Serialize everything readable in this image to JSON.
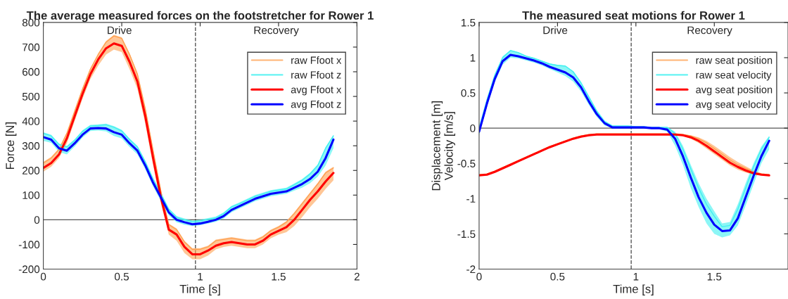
{
  "chart_data": [
    {
      "type": "line",
      "title": "The average measured forces on the footstretcher for Rower 1",
      "xlabel": "Time [s]",
      "ylabel": "Force [N]",
      "x": [
        0,
        0.05,
        0.1,
        0.15,
        0.2,
        0.25,
        0.3,
        0.35,
        0.4,
        0.45,
        0.5,
        0.55,
        0.6,
        0.65,
        0.7,
        0.75,
        0.8,
        0.85,
        0.9,
        0.95,
        1.0,
        1.05,
        1.1,
        1.15,
        1.2,
        1.25,
        1.3,
        1.35,
        1.4,
        1.45,
        1.5,
        1.55,
        1.6,
        1.65,
        1.7,
        1.75,
        1.8,
        1.85
      ],
      "xlim": [
        0,
        2
      ],
      "xticks": [
        0,
        0.5,
        1,
        1.5,
        2
      ],
      "ylim": [
        -200,
        800
      ],
      "yticks": [
        -200,
        -100,
        0,
        100,
        200,
        300,
        400,
        500,
        600,
        700,
        800
      ],
      "grid": false,
      "legend": "top right",
      "ref_lines": [
        {
          "axis": "x",
          "value": 0.97,
          "color": "#555555",
          "line_style": "dashed"
        },
        {
          "axis": "y",
          "value": 0,
          "color": "#555555",
          "line_style": "solid"
        }
      ],
      "annotations": [
        "Drive",
        "Recovery"
      ],
      "series": [
        {
          "name": "raw Ffoot x",
          "color": "#ffa050",
          "values": [
            230,
            250,
            285,
            350,
            440,
            530,
            610,
            670,
            720,
            745,
            735,
            670,
            590,
            450,
            280,
            115,
            -20,
            -40,
            -90,
            -120,
            -120,
            -110,
            -85,
            -80,
            -75,
            -80,
            -85,
            -85,
            -70,
            -45,
            -30,
            -10,
            25,
            65,
            105,
            145,
            190,
            210
          ],
          "upper": [
            235,
            255,
            290,
            355,
            445,
            535,
            615,
            675,
            725,
            750,
            740,
            675,
            595,
            455,
            285,
            120,
            -15,
            -35,
            -85,
            -115,
            -115,
            -105,
            -80,
            -75,
            -70,
            -75,
            -80,
            -80,
            -65,
            -40,
            -25,
            -5,
            30,
            70,
            110,
            150,
            195,
            215
          ],
          "lower": [
            195,
            215,
            250,
            310,
            400,
            490,
            570,
            625,
            670,
            690,
            680,
            610,
            530,
            390,
            220,
            65,
            -60,
            -85,
            -135,
            -160,
            -160,
            -145,
            -120,
            -110,
            -105,
            -110,
            -115,
            -115,
            -100,
            -75,
            -60,
            -50,
            -25,
            10,
            50,
            85,
            125,
            160
          ]
        },
        {
          "name": "raw Ffoot z",
          "color": "#40f0f0",
          "values": [
            350,
            340,
            305,
            295,
            322,
            358,
            380,
            382,
            385,
            375,
            360,
            325,
            295,
            235,
            165,
            105,
            42,
            10,
            0,
            -8,
            -5,
            2,
            8,
            25,
            52,
            65,
            80,
            95,
            105,
            115,
            120,
            125,
            142,
            160,
            185,
            220,
            290,
            340
          ],
          "upper": [
            355,
            345,
            310,
            300,
            327,
            363,
            385,
            387,
            390,
            380,
            365,
            330,
            300,
            240,
            170,
            110,
            47,
            15,
            5,
            -3,
            0,
            7,
            13,
            30,
            57,
            70,
            85,
            100,
            110,
            120,
            125,
            130,
            147,
            165,
            190,
            225,
            295,
            345
          ],
          "lower": [
            320,
            312,
            275,
            265,
            297,
            333,
            360,
            362,
            358,
            340,
            330,
            295,
            265,
            205,
            135,
            75,
            18,
            -10,
            -20,
            -25,
            -22,
            -15,
            -8,
            5,
            30,
            45,
            60,
            75,
            85,
            95,
            100,
            105,
            118,
            130,
            148,
            175,
            220,
            290
          ]
        },
        {
          "name": "avg Ffoot x",
          "color": "#ff0000",
          "values": [
            210,
            230,
            265,
            330,
            420,
            510,
            590,
            650,
            695,
            715,
            705,
            640,
            560,
            420,
            250,
            90,
            -40,
            -60,
            -110,
            -140,
            -140,
            -125,
            -105,
            -95,
            -90,
            -95,
            -100,
            -100,
            -85,
            -60,
            -45,
            -30,
            0,
            40,
            80,
            115,
            155,
            190
          ]
        },
        {
          "name": "avg Ffoot z",
          "color": "#0000ff",
          "values": [
            335,
            325,
            290,
            280,
            310,
            345,
            370,
            372,
            370,
            355,
            345,
            310,
            280,
            220,
            150,
            90,
            30,
            0,
            -10,
            -18,
            -15,
            -8,
            0,
            15,
            40,
            55,
            70,
            85,
            95,
            105,
            110,
            115,
            130,
            145,
            165,
            195,
            250,
            325
          ]
        }
      ]
    },
    {
      "type": "line",
      "title": "The measured seat motions for Rower 1",
      "xlabel": "Time [s]",
      "ylabel": "Displacement [m]\nVelocity [m/s]",
      "x": [
        0,
        0.05,
        0.1,
        0.15,
        0.2,
        0.25,
        0.3,
        0.35,
        0.4,
        0.45,
        0.5,
        0.55,
        0.6,
        0.65,
        0.7,
        0.75,
        0.8,
        0.85,
        0.9,
        0.95,
        1.0,
        1.05,
        1.1,
        1.15,
        1.2,
        1.25,
        1.3,
        1.35,
        1.4,
        1.45,
        1.5,
        1.55,
        1.6,
        1.65,
        1.7,
        1.75,
        1.8,
        1.85
      ],
      "xlim": [
        0,
        1.97
      ],
      "xticks": [
        0,
        0.5,
        1,
        1.5
      ],
      "ylim": [
        -2,
        1.5
      ],
      "yticks": [
        -2,
        -1.5,
        -1,
        -0.5,
        0,
        0.5,
        1,
        1.5
      ],
      "grid": false,
      "legend": "top right",
      "ref_lines": [
        {
          "axis": "x",
          "value": 0.97,
          "color": "#555555",
          "line_style": "dashed"
        },
        {
          "axis": "y",
          "value": 0,
          "color": "#555555",
          "line_style": "solid"
        }
      ],
      "annotations": [
        "Drive",
        "Recovery"
      ],
      "series": [
        {
          "name": "raw seat position",
          "color": "#ffa050",
          "values": [
            -0.66,
            -0.65,
            -0.61,
            -0.56,
            -0.51,
            -0.46,
            -0.41,
            -0.36,
            -0.31,
            -0.26,
            -0.22,
            -0.18,
            -0.14,
            -0.11,
            -0.09,
            -0.08,
            -0.08,
            -0.08,
            -0.08,
            -0.08,
            -0.08,
            -0.08,
            -0.08,
            -0.08,
            -0.08,
            -0.08,
            -0.09,
            -0.11,
            -0.15,
            -0.21,
            -0.29,
            -0.37,
            -0.45,
            -0.52,
            -0.57,
            -0.62,
            -0.65,
            -0.66
          ],
          "upper": [
            -0.655,
            -0.645,
            -0.605,
            -0.555,
            -0.505,
            -0.455,
            -0.405,
            -0.355,
            -0.305,
            -0.255,
            -0.215,
            -0.175,
            -0.135,
            -0.105,
            -0.085,
            -0.075,
            -0.075,
            -0.075,
            -0.075,
            -0.075,
            -0.075,
            -0.075,
            -0.075,
            -0.075,
            -0.075,
            -0.075,
            -0.085,
            -0.1,
            -0.13,
            -0.18,
            -0.25,
            -0.33,
            -0.41,
            -0.48,
            -0.54,
            -0.6,
            -0.64,
            -0.655
          ],
          "lower": [
            -0.68,
            -0.67,
            -0.63,
            -0.58,
            -0.53,
            -0.48,
            -0.43,
            -0.38,
            -0.33,
            -0.28,
            -0.24,
            -0.2,
            -0.16,
            -0.13,
            -0.11,
            -0.1,
            -0.1,
            -0.1,
            -0.1,
            -0.1,
            -0.1,
            -0.1,
            -0.1,
            -0.1,
            -0.1,
            -0.1,
            -0.11,
            -0.15,
            -0.21,
            -0.29,
            -0.37,
            -0.45,
            -0.53,
            -0.59,
            -0.63,
            -0.66,
            -0.67,
            -0.68
          ]
        },
        {
          "name": "raw seat velocity",
          "color": "#40f0f0",
          "values": [
            0.0,
            0.4,
            0.75,
            1.0,
            1.1,
            1.07,
            1.02,
            0.99,
            0.95,
            0.91,
            0.89,
            0.88,
            0.8,
            0.64,
            0.44,
            0.24,
            0.09,
            0.03,
            0.03,
            0.03,
            0.02,
            0.02,
            0.01,
            0.01,
            0.01,
            -0.08,
            -0.3,
            -0.58,
            -0.85,
            -1.08,
            -1.25,
            -1.4,
            -1.38,
            -1.15,
            -0.85,
            -0.55,
            -0.3,
            -0.13
          ],
          "upper": [
            0.02,
            0.42,
            0.77,
            1.02,
            1.11,
            1.08,
            1.03,
            1.0,
            0.96,
            0.92,
            0.9,
            0.89,
            0.81,
            0.66,
            0.46,
            0.26,
            0.11,
            0.04,
            0.04,
            0.04,
            0.03,
            0.03,
            0.02,
            0.02,
            0.02,
            -0.05,
            -0.25,
            -0.52,
            -0.78,
            -1.0,
            -1.18,
            -1.35,
            -1.33,
            -1.08,
            -0.78,
            -0.5,
            -0.26,
            -0.11
          ],
          "lower": [
            -0.1,
            0.3,
            0.65,
            0.9,
            1.0,
            0.99,
            0.96,
            0.93,
            0.89,
            0.84,
            0.79,
            0.74,
            0.66,
            0.52,
            0.33,
            0.16,
            0.04,
            0.0,
            0.0,
            0.0,
            0.0,
            0.0,
            -0.01,
            -0.01,
            -0.05,
            -0.25,
            -0.52,
            -0.85,
            -1.12,
            -1.35,
            -1.5,
            -1.55,
            -1.52,
            -1.38,
            -1.1,
            -0.8,
            -0.5,
            -0.3
          ]
        },
        {
          "name": "avg seat position",
          "color": "#ff0000",
          "values": [
            -0.67,
            -0.66,
            -0.62,
            -0.57,
            -0.52,
            -0.47,
            -0.42,
            -0.37,
            -0.32,
            -0.27,
            -0.23,
            -0.19,
            -0.15,
            -0.12,
            -0.1,
            -0.09,
            -0.09,
            -0.09,
            -0.09,
            -0.09,
            -0.09,
            -0.09,
            -0.09,
            -0.09,
            -0.09,
            -0.09,
            -0.1,
            -0.13,
            -0.18,
            -0.25,
            -0.33,
            -0.41,
            -0.49,
            -0.55,
            -0.6,
            -0.64,
            -0.66,
            -0.67
          ]
        },
        {
          "name": "avg seat velocity",
          "color": "#0000ff",
          "values": [
            -0.05,
            0.35,
            0.7,
            0.95,
            1.04,
            1.02,
            0.99,
            0.96,
            0.92,
            0.87,
            0.83,
            0.79,
            0.72,
            0.58,
            0.38,
            0.2,
            0.07,
            0.01,
            0.01,
            0.01,
            0.01,
            0.01,
            0.0,
            0.0,
            -0.02,
            -0.15,
            -0.4,
            -0.7,
            -0.98,
            -1.2,
            -1.37,
            -1.46,
            -1.45,
            -1.28,
            -0.98,
            -0.68,
            -0.4,
            -0.18
          ]
        }
      ]
    }
  ]
}
